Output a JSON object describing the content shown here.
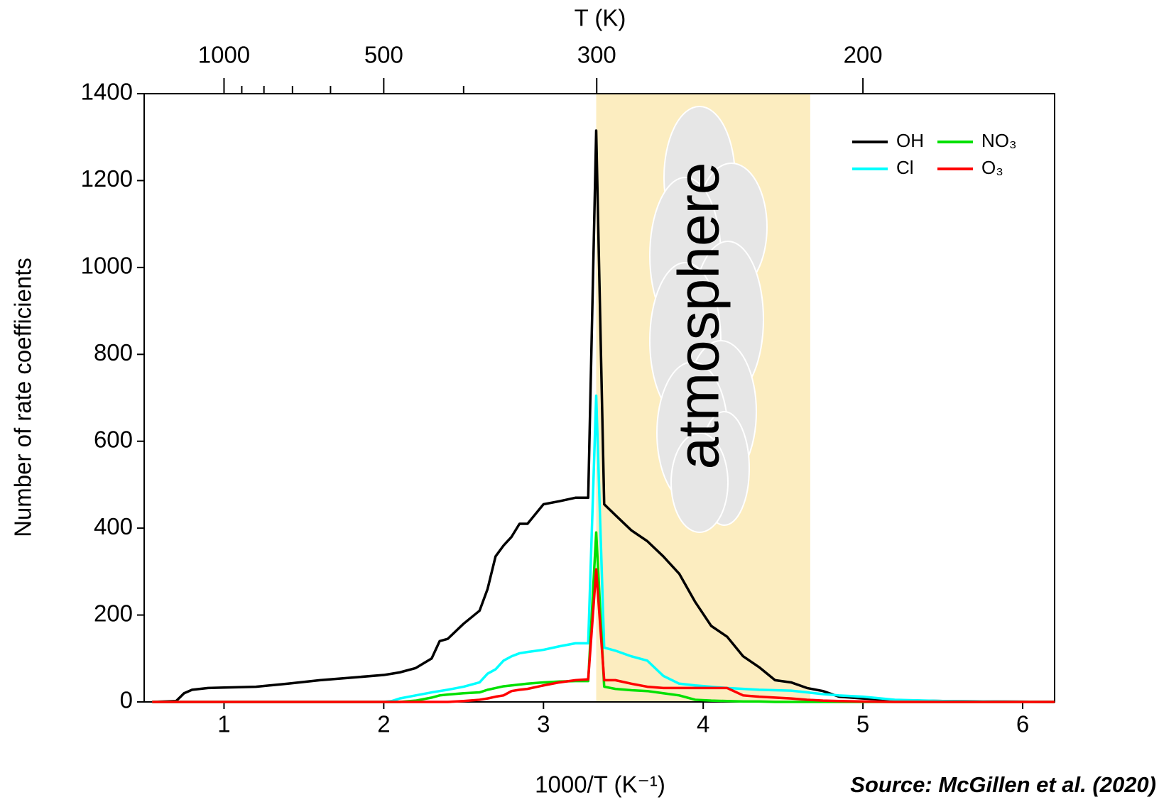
{
  "chart_data": {
    "type": "line",
    "x_label": "1000/T (K⁻¹)",
    "y_label": "Number of rate coefficients",
    "top_x_label": "T (K)",
    "annotation": "atmosphere",
    "source": "Source: McGillen et al. (2020)",
    "xlim": [
      0.5,
      6.2
    ],
    "xticks": [
      1,
      2,
      3,
      4,
      5,
      6
    ],
    "ylim": [
      0,
      1400
    ],
    "yticks": [
      0,
      200,
      400,
      600,
      800,
      1000,
      1200,
      1400
    ],
    "top_xticks": [
      1000,
      500,
      300,
      200
    ],
    "top_minor_ticks": [
      900,
      800,
      700,
      600,
      400
    ],
    "shade": {
      "xmin": 3.33,
      "xmax": 4.67,
      "color": "#fcedc0"
    },
    "grid": false,
    "legend": "upper right",
    "x": [
      0.55,
      0.7,
      0.75,
      0.8,
      0.9,
      1.0,
      1.2,
      1.4,
      1.6,
      1.8,
      2.0,
      2.05,
      2.1,
      2.2,
      2.3,
      2.35,
      2.4,
      2.5,
      2.6,
      2.65,
      2.7,
      2.75,
      2.8,
      2.85,
      2.9,
      3.0,
      3.1,
      3.2,
      3.28,
      3.33,
      3.38,
      3.45,
      3.55,
      3.65,
      3.75,
      3.85,
      3.95,
      4.05,
      4.15,
      4.25,
      4.35,
      4.45,
      4.55,
      4.65,
      4.75,
      4.85,
      5.0,
      5.2,
      5.5,
      6.2
    ],
    "series": [
      {
        "name": "OH",
        "color": "#000000",
        "values": [
          0,
          2,
          20,
          28,
          32,
          33,
          35,
          42,
          50,
          56,
          62,
          65,
          68,
          78,
          100,
          140,
          145,
          180,
          210,
          260,
          335,
          360,
          380,
          410,
          410,
          455,
          462,
          470,
          470,
          1315,
          455,
          430,
          395,
          370,
          335,
          295,
          230,
          175,
          150,
          105,
          80,
          50,
          45,
          32,
          25,
          12,
          8,
          4,
          2,
          0
        ]
      },
      {
        "name": "Cl",
        "color": "#00ffff",
        "values": [
          0,
          0,
          0,
          0,
          0,
          0,
          0,
          0,
          0,
          0,
          0,
          2,
          8,
          15,
          22,
          25,
          28,
          35,
          45,
          65,
          75,
          95,
          105,
          112,
          115,
          120,
          128,
          135,
          135,
          705,
          125,
          118,
          105,
          95,
          60,
          42,
          38,
          35,
          32,
          30,
          28,
          27,
          26,
          22,
          18,
          15,
          12,
          5,
          2,
          0
        ]
      },
      {
        "name": "NO₃",
        "color": "#00e000",
        "values": [
          0,
          0,
          0,
          0,
          0,
          0,
          0,
          0,
          0,
          0,
          0,
          0,
          0,
          3,
          10,
          15,
          17,
          20,
          22,
          28,
          32,
          36,
          38,
          40,
          42,
          45,
          47,
          48,
          48,
          390,
          35,
          30,
          27,
          25,
          20,
          15,
          5,
          3,
          2,
          1,
          1,
          0,
          0,
          0,
          0,
          0,
          0,
          0,
          0,
          0
        ]
      },
      {
        "name": "O₃",
        "color": "#ff0000",
        "values": [
          0,
          0,
          0,
          0,
          0,
          0,
          0,
          0,
          0,
          0,
          0,
          0,
          0,
          0,
          0,
          0,
          0,
          2,
          5,
          8,
          12,
          15,
          25,
          28,
          30,
          38,
          45,
          50,
          52,
          305,
          50,
          50,
          42,
          35,
          32,
          32,
          32,
          32,
          32,
          15,
          12,
          10,
          8,
          5,
          3,
          2,
          1,
          0,
          0,
          0
        ]
      }
    ]
  }
}
